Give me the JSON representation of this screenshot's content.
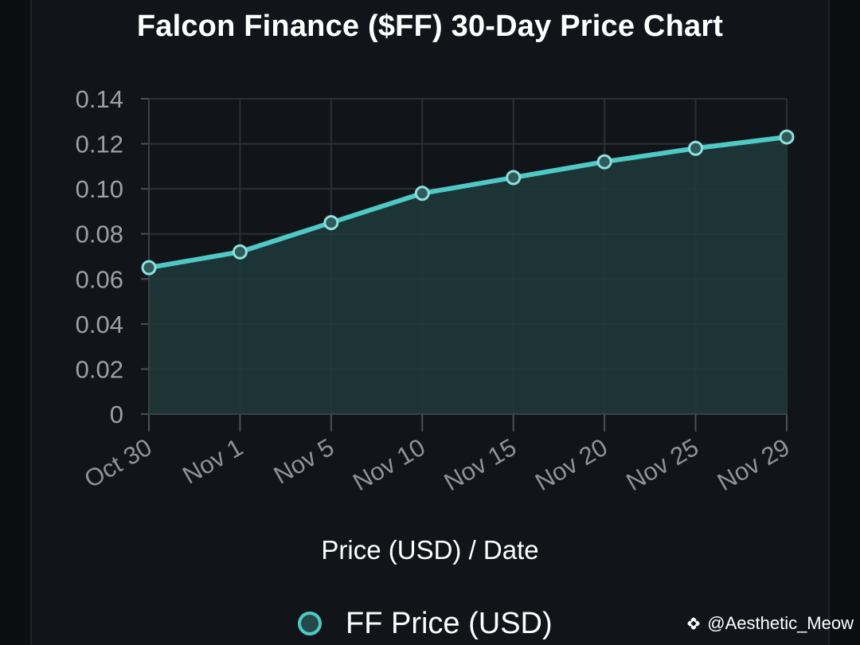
{
  "chart_data": {
    "type": "area",
    "title": "Falcon Finance ($FF) 30-Day Price Chart",
    "xlabel": "Price (USD) / Date",
    "ylabel": "",
    "categories": [
      "Oct 30",
      "Nov 1",
      "Nov 5",
      "Nov 10",
      "Nov 15",
      "Nov 20",
      "Nov 25",
      "Nov 29"
    ],
    "series": [
      {
        "name": "FF Price (USD)",
        "values": [
          0.065,
          0.072,
          0.085,
          0.098,
          0.105,
          0.112,
          0.118,
          0.123
        ]
      }
    ],
    "ylim": [
      0,
      0.14
    ],
    "yticks": [
      "0",
      "0.02",
      "0.04",
      "0.06",
      "0.08",
      "0.10",
      "0.12",
      "0.14"
    ],
    "grid": true,
    "legend": "bottom",
    "colors": {
      "line": "#4ec9c6",
      "fill": "#1f3a3c",
      "background": "#111519",
      "grid": "#2a3035"
    }
  },
  "watermark": {
    "text": "@Aesthetic_Meow",
    "icon": "binance-logo-icon"
  }
}
